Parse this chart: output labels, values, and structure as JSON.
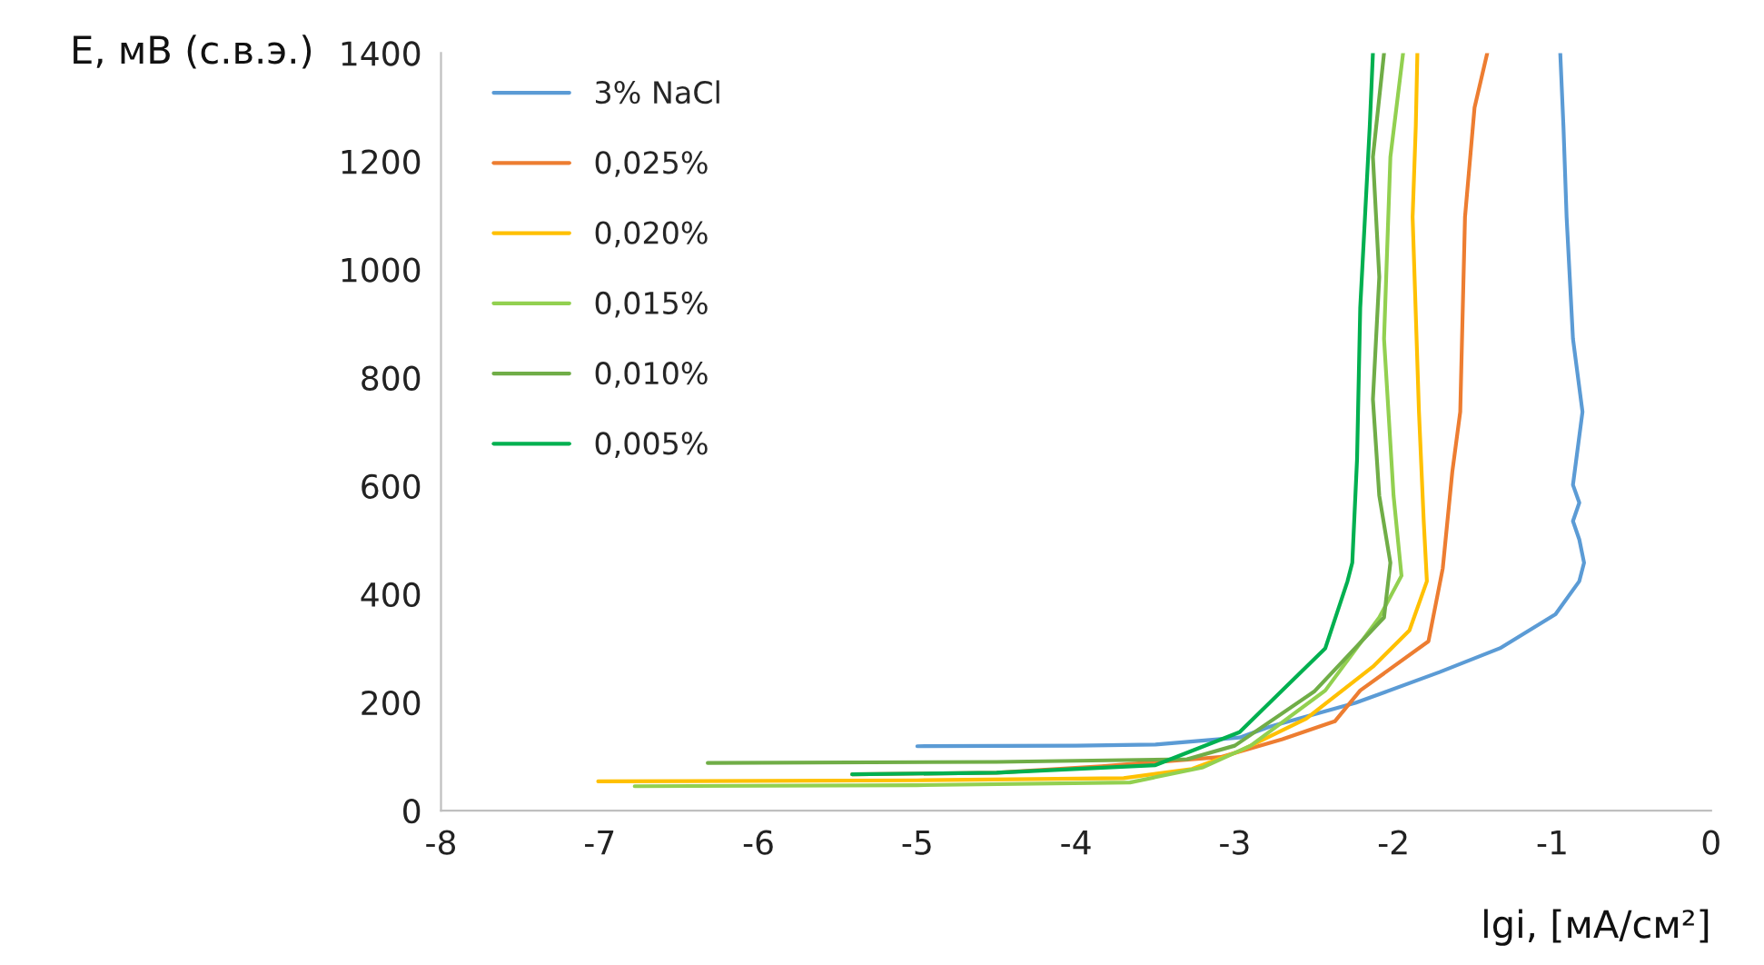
{
  "chart_data": {
    "type": "line",
    "xlabel": "lgi, [мА/см²]",
    "ylabel": "E, мВ (с.в.э.)",
    "xlim": [
      -8,
      0
    ],
    "ylim": [
      0,
      1400
    ],
    "xticks": [
      -8,
      -7,
      -6,
      -5,
      -4,
      -3,
      -2,
      -1,
      0
    ],
    "yticks": [
      0,
      200,
      400,
      600,
      800,
      1000,
      1200,
      1400
    ],
    "grid": false,
    "legend": "top left",
    "marker": "none",
    "line_style": "solid",
    "series": [
      {
        "name": "3% NaCl",
        "color": "#5b9bd5",
        "x": [
          -5.0,
          -4.0,
          -3.5,
          -2.97,
          -2.78,
          -2.24,
          -1.71,
          -1.33,
          -0.98,
          -0.83,
          -0.8,
          -0.83,
          -0.87,
          -0.83,
          -0.87,
          -0.81,
          -0.87,
          -0.91,
          -0.93,
          -0.95
        ],
        "values": [
          119,
          120,
          122,
          135,
          155,
          199,
          256,
          300,
          363,
          424,
          458,
          501,
          535,
          569,
          602,
          737,
          872,
          1097,
          1265,
          1400
        ]
      },
      {
        "name": "0,025%",
        "color": "#ed7d31",
        "x": [
          -5.41,
          -4.5,
          -3.84,
          -3.09,
          -2.7,
          -2.37,
          -2.21,
          -1.78,
          -1.69,
          -1.63,
          -1.58,
          -1.55,
          -1.49,
          -1.41
        ],
        "values": [
          67,
          70,
          82,
          99,
          132,
          165,
          222,
          313,
          448,
          626,
          737,
          1097,
          1299,
          1400
        ]
      },
      {
        "name": "0,020%",
        "color": "#ffc000",
        "x": [
          -7.01,
          -5.0,
          -3.7,
          -3.27,
          -2.97,
          -2.55,
          -2.13,
          -1.9,
          -1.79,
          -1.81,
          -1.84,
          -1.88,
          -1.86,
          -1.85
        ],
        "values": [
          54,
          56,
          60,
          77,
          110,
          170,
          266,
          333,
          424,
          535,
          737,
          1097,
          1265,
          1400
        ]
      },
      {
        "name": "0,015%",
        "color": "#92d050",
        "x": [
          -6.78,
          -5.0,
          -3.66,
          -3.2,
          -2.9,
          -2.43,
          -2.09,
          -1.95,
          -2.0,
          -2.06,
          -2.02,
          -1.94
        ],
        "values": [
          45,
          47,
          52,
          80,
          120,
          222,
          357,
          434,
          582,
          872,
          1208,
          1400
        ]
      },
      {
        "name": "0,010%",
        "color": "#70ad47",
        "x": [
          -6.32,
          -4.5,
          -3.3,
          -3.0,
          -2.5,
          -2.06,
          -2.02,
          -2.09,
          -2.13,
          -2.09,
          -2.13,
          -2.06
        ],
        "values": [
          88,
          90,
          95,
          120,
          220,
          357,
          458,
          582,
          760,
          986,
          1208,
          1400
        ]
      },
      {
        "name": "0,005%",
        "color": "#00b050",
        "x": [
          -5.41,
          -4.5,
          -3.5,
          -2.97,
          -2.43,
          -2.29,
          -2.26,
          -2.23,
          -2.21,
          -2.18,
          -2.15,
          -2.13
        ],
        "values": [
          67,
          70,
          84,
          145,
          300,
          424,
          458,
          649,
          929,
          1097,
          1265,
          1400
        ]
      }
    ]
  }
}
